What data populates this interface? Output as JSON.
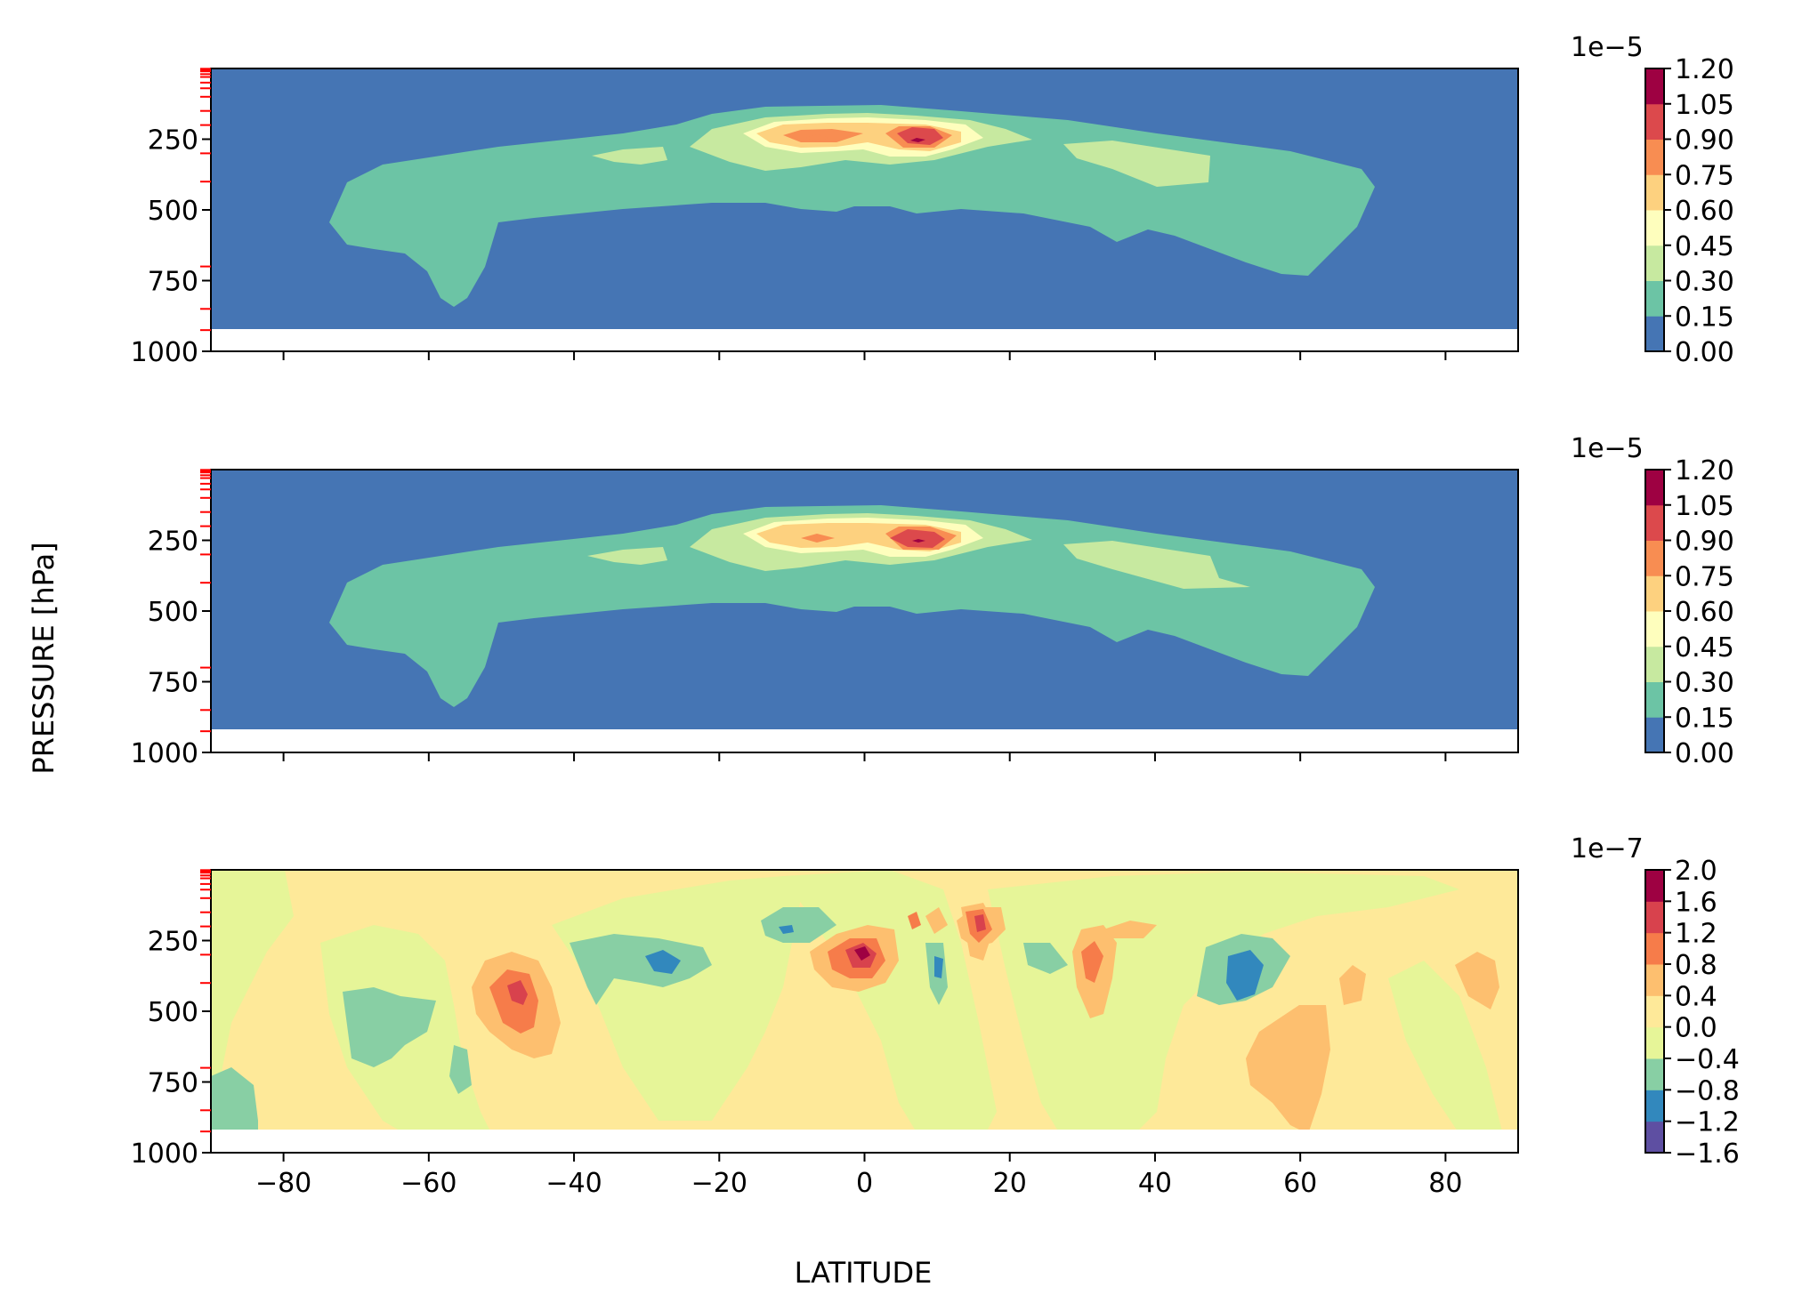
{
  "figure": {
    "ylabel": "PRESSURE [hPa]",
    "xlabel": "LATITUDE"
  },
  "chart_data": [
    {
      "type": "contour",
      "panel": "top",
      "xlim": [
        -90,
        90
      ],
      "ylim": [
        1000,
        0
      ],
      "inverted_y": true,
      "xticks": [
        -80,
        -60,
        -40,
        -20,
        0,
        20,
        40,
        60,
        80
      ],
      "yticks": [
        250,
        500,
        750,
        1000
      ],
      "ytick_labels": [
        "250",
        "500",
        "750",
        "1000"
      ],
      "minor_red_ticks": [
        1,
        5,
        10,
        20,
        30,
        50,
        70,
        100,
        150,
        200,
        300,
        400,
        700,
        850,
        925
      ],
      "colorbar": {
        "exponent": "1e−5",
        "levels": [
          "0.00",
          "0.15",
          "0.30",
          "0.45",
          "0.60",
          "0.75",
          "0.90",
          "1.05",
          "1.20"
        ],
        "colors": [
          "#4575b4",
          "#6cc4a5",
          "#c7e9a0",
          "#fefebd",
          "#fdd17f",
          "#f88d52",
          "#dc494c",
          "#9e0142"
        ]
      },
      "features": [
        {
          "level": "0.15-0.30",
          "region": "broad band 300-700 hPa from -75 to 70 lat"
        },
        {
          "level": "1.05-1.20",
          "lat": 7,
          "pressure": 250
        }
      ]
    },
    {
      "type": "contour",
      "panel": "middle",
      "xlim": [
        -90,
        90
      ],
      "ylim": [
        1000,
        0
      ],
      "inverted_y": true,
      "xticks": [
        -80,
        -60,
        -40,
        -20,
        0,
        20,
        40,
        60,
        80
      ],
      "yticks": [
        250,
        500,
        750,
        1000
      ],
      "ytick_labels": [
        "250",
        "500",
        "750",
        "1000"
      ],
      "minor_red_ticks": [
        1,
        5,
        10,
        20,
        30,
        50,
        70,
        100,
        150,
        200,
        300,
        400,
        700,
        850,
        925
      ],
      "colorbar": {
        "exponent": "1e−5",
        "levels": [
          "0.00",
          "0.15",
          "0.30",
          "0.45",
          "0.60",
          "0.75",
          "0.90",
          "1.05",
          "1.20"
        ],
        "colors": [
          "#4575b4",
          "#6cc4a5",
          "#c7e9a0",
          "#fefebd",
          "#fdd17f",
          "#f88d52",
          "#dc494c",
          "#9e0142"
        ]
      }
    },
    {
      "type": "contour",
      "panel": "bottom",
      "xlim": [
        -90,
        90
      ],
      "ylim": [
        1000,
        0
      ],
      "inverted_y": true,
      "xticks": [
        -80,
        -60,
        -40,
        -20,
        0,
        20,
        40,
        60,
        80
      ],
      "xtick_labels": [
        "−80",
        "−60",
        "−40",
        "−20",
        "0",
        "20",
        "40",
        "60",
        "80"
      ],
      "yticks": [
        250,
        500,
        750,
        1000
      ],
      "ytick_labels": [
        "250",
        "500",
        "750",
        "1000"
      ],
      "minor_red_ticks": [
        1,
        5,
        10,
        20,
        30,
        50,
        70,
        100,
        150,
        200,
        300,
        400,
        700,
        850,
        925
      ],
      "colorbar": {
        "exponent": "1e−7",
        "levels": [
          "−1.6",
          "−1.2",
          "−0.8",
          "−0.4",
          "0.0",
          "0.4",
          "0.8",
          "1.2",
          "1.6",
          "2.0"
        ],
        "colors": [
          "#5e4fa2",
          "#3288bd",
          "#88cfa4",
          "#e6f598",
          "#fee999",
          "#fdbf6f",
          "#f67c4a",
          "#d8424d",
          "#9e0142"
        ]
      }
    }
  ]
}
